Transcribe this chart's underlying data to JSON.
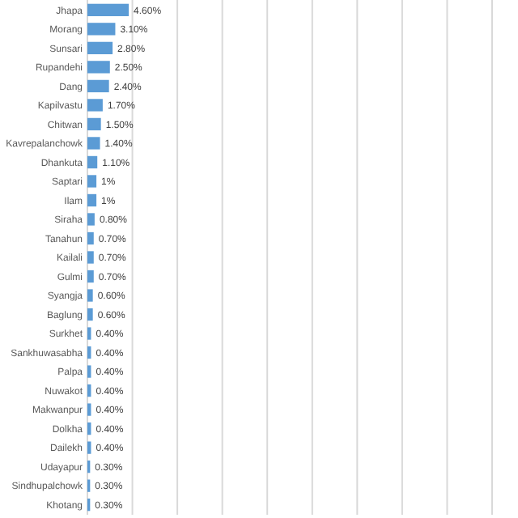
{
  "chart_data": {
    "type": "bar",
    "orientation": "horizontal",
    "categories": [
      "Jhapa",
      "Morang",
      "Sunsari",
      "Rupandehi",
      "Dang",
      "Kapilvastu",
      "Chitwan",
      "Kavrepalanchowk",
      "Dhankuta",
      "Saptari",
      "Ilam",
      "Siraha",
      "Tanahun",
      "Kailali",
      "Gulmi",
      "Syangja",
      "Baglung",
      "Surkhet",
      "Sankhuwasabha",
      "Palpa",
      "Nuwakot",
      "Makwanpur",
      "Dolkha",
      "Dailekh",
      "Udayapur",
      "Sindhupalchowk",
      "Khotang"
    ],
    "values": [
      4.6,
      3.1,
      2.8,
      2.5,
      2.4,
      1.7,
      1.5,
      1.4,
      1.1,
      1,
      1,
      0.8,
      0.7,
      0.7,
      0.7,
      0.6,
      0.6,
      0.4,
      0.4,
      0.4,
      0.4,
      0.4,
      0.4,
      0.4,
      0.3,
      0.3,
      0.3
    ],
    "value_labels": [
      "4.60%",
      "3.10%",
      "2.80%",
      "2.50%",
      "2.40%",
      "1.70%",
      "1.50%",
      "1.40%",
      "1.10%",
      "1%",
      "1%",
      "0.80%",
      "0.70%",
      "0.70%",
      "0.70%",
      "0.60%",
      "0.60%",
      "0.40%",
      "0.40%",
      "0.40%",
      "0.40%",
      "0.40%",
      "0.40%",
      "0.40%",
      "0.30%",
      "0.30%",
      "0.30%"
    ],
    "color": "#5b9bd5",
    "xlim": [
      0,
      45
    ],
    "xticks": [
      {
        "value": 0,
        "label": null
      },
      {
        "value": 5,
        "label": null
      },
      {
        "value": 10,
        "label": null
      },
      {
        "value": 15,
        "label": null
      },
      {
        "value": 20,
        "label": null
      },
      {
        "value": 25,
        "label": null
      },
      {
        "value": 30,
        "label": null
      },
      {
        "value": 35,
        "label": null
      },
      {
        "value": 40,
        "label": null
      },
      {
        "value": 45,
        "label": null
      }
    ],
    "grid": "x",
    "tick_labels": "y"
  }
}
